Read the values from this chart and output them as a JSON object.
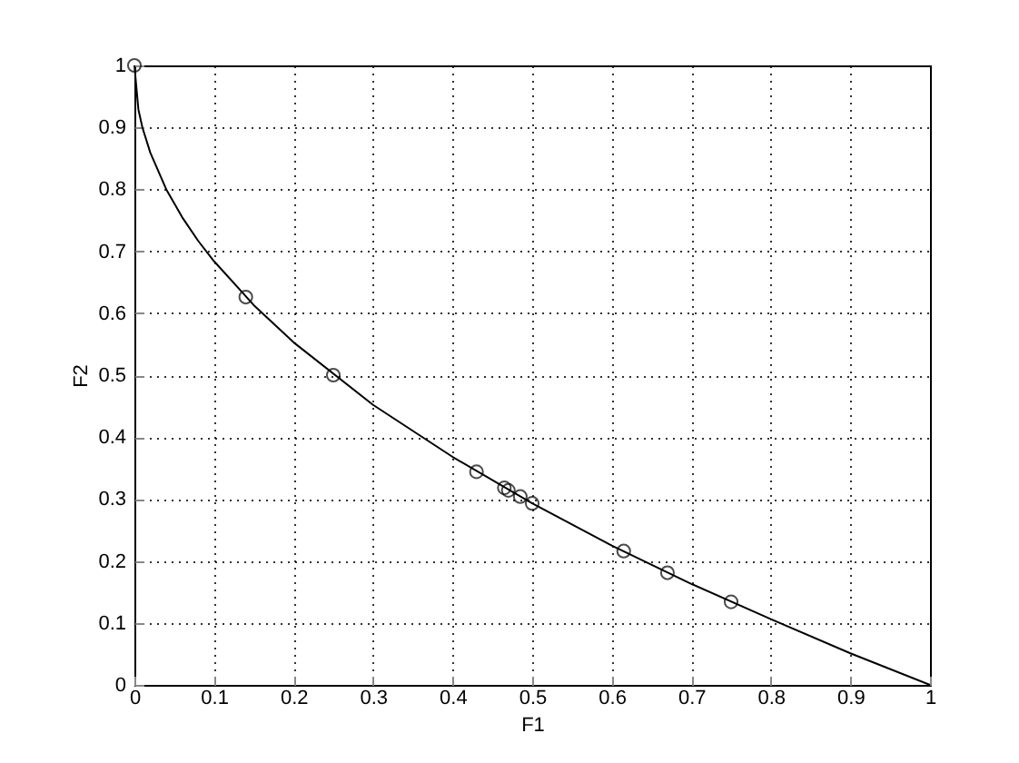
{
  "chart_data": {
    "type": "scatter",
    "xlabel": "F1",
    "ylabel": "F2",
    "xlim": [
      0,
      1
    ],
    "ylim": [
      0,
      1
    ],
    "xticks": [
      0,
      0.1,
      0.2,
      0.3,
      0.4,
      0.5,
      0.6,
      0.7,
      0.8,
      0.9,
      1
    ],
    "yticks": [
      0,
      0.1,
      0.2,
      0.3,
      0.4,
      0.5,
      0.6,
      0.7,
      0.8,
      0.9,
      1
    ],
    "grid": true,
    "series": [
      {
        "type": "line",
        "color": "#000000",
        "marker": "none",
        "line_style": "solid",
        "x": [
          0,
          0.005,
          0.01,
          0.02,
          0.04,
          0.06,
          0.08,
          0.1,
          0.15,
          0.2,
          0.3,
          0.4,
          0.5,
          0.6,
          0.7,
          0.8,
          0.9,
          1
        ],
        "values": [
          1,
          0.929,
          0.9,
          0.859,
          0.8,
          0.755,
          0.717,
          0.684,
          0.613,
          0.553,
          0.452,
          0.368,
          0.293,
          0.225,
          0.163,
          0.106,
          0.051,
          0
        ]
      },
      {
        "type": "scatter",
        "color": "#000000",
        "marker": "circle",
        "x": [
          0,
          0.14,
          0.25,
          0.43,
          0.465,
          0.47,
          0.485,
          0.5,
          0.615,
          0.67,
          0.75
        ],
        "values": [
          1,
          0.626,
          0.5,
          0.344,
          0.318,
          0.314,
          0.304,
          0.293,
          0.216,
          0.181,
          0.134
        ]
      }
    ]
  }
}
